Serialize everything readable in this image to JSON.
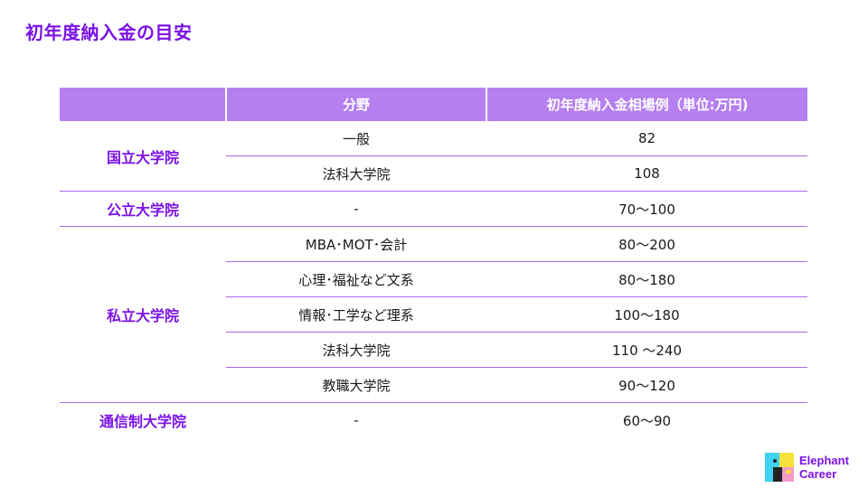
{
  "title": "初年度納入金の目安",
  "table": {
    "headers": [
      "",
      "分野",
      "初年度納入金相場例（単位:万円)"
    ],
    "groups": [
      {
        "name": "国立大学院",
        "rows": [
          {
            "field": "一般",
            "value": "82"
          },
          {
            "field": "法科大学院",
            "value": "108"
          }
        ]
      },
      {
        "name": "公立大学院",
        "rows": [
          {
            "field": "-",
            "value": "70〜100"
          }
        ]
      },
      {
        "name": "私立大学院",
        "rows": [
          {
            "field": "MBA･MOT･会計",
            "value": "80〜200"
          },
          {
            "field": "心理･福祉など文系",
            "value": "80〜180"
          },
          {
            "field": "情報･工学など理系",
            "value": "100〜180"
          },
          {
            "field": "法科大学院",
            "value": "110 〜240"
          },
          {
            "field": "教職大学院",
            "value": "90〜120"
          }
        ]
      },
      {
        "name": "通信制大学院",
        "rows": [
          {
            "field": "-",
            "value": "60〜90"
          }
        ]
      }
    ]
  },
  "logo": {
    "line1": "Elephant",
    "line2": "Career",
    "color": "#7b12e6"
  },
  "colors": {
    "accent": "#7b12e6",
    "header_bg": "#b57ff0",
    "divider": "#a86be8"
  }
}
